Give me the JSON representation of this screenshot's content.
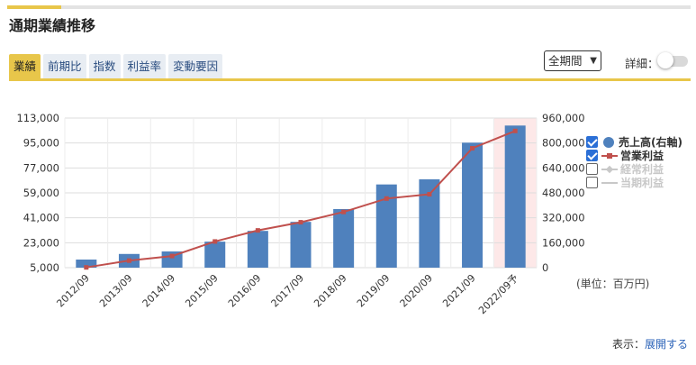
{
  "title": "通期業績推移",
  "tabs": [
    {
      "label": "業績",
      "active": true
    },
    {
      "label": "前期比",
      "active": false
    },
    {
      "label": "指数",
      "active": false
    },
    {
      "label": "利益率",
      "active": false
    },
    {
      "label": "変動要因",
      "active": false
    }
  ],
  "period_select": {
    "value": "全期間"
  },
  "detail": {
    "label": "詳細：",
    "enabled": false
  },
  "legend": [
    {
      "label": "売上高(右軸)",
      "checked": true,
      "color": "#4f81bd",
      "marker": "dot"
    },
    {
      "label": "営業利益",
      "checked": true,
      "color": "#c0504d",
      "marker": "line"
    },
    {
      "label": "経常利益",
      "checked": false,
      "color": "#c8c8c8",
      "marker": "line"
    },
    {
      "label": "当期利益",
      "checked": false,
      "color": "#c8c8c8",
      "marker": "line"
    }
  ],
  "unit_label": "(単位：百万円)",
  "display": {
    "prefix": "表示：",
    "link": "展開する"
  },
  "colors": {
    "accent": "#e8c64a",
    "bar": "#4f81bd",
    "line": "#c0504d",
    "forecast_band": "#fde8e8"
  },
  "chart_data": {
    "type": "bar+line",
    "categories": [
      "2012/09",
      "2013/09",
      "2014/09",
      "2015/09",
      "2016/09",
      "2017/09",
      "2018/09",
      "2019/09",
      "2020/09",
      "2021/09",
      "2022/09予"
    ],
    "forecast_index": 10,
    "left_axis": {
      "ticks": [
        "113,000",
        "95,000",
        "77,000",
        "59,000",
        "41,000",
        "23,000",
        "5,000"
      ],
      "ylim": [
        5000,
        113000
      ]
    },
    "right_axis": {
      "ticks": [
        "960,000",
        "800,000",
        "640,000",
        "480,000",
        "320,000",
        "160,000",
        "0"
      ],
      "ylim": [
        0,
        960000
      ]
    },
    "series": [
      {
        "name": "売上高(右軸)",
        "type": "bar",
        "axis": "right",
        "values": [
          52000,
          88000,
          104000,
          167000,
          236000,
          294000,
          376000,
          534000,
          567000,
          802000,
          912000
        ]
      },
      {
        "name": "営業利益",
        "type": "line",
        "axis": "left",
        "values": [
          5200,
          10100,
          13400,
          23900,
          31900,
          37800,
          45200,
          54900,
          58000,
          91200,
          103700
        ]
      }
    ],
    "grid": true
  }
}
